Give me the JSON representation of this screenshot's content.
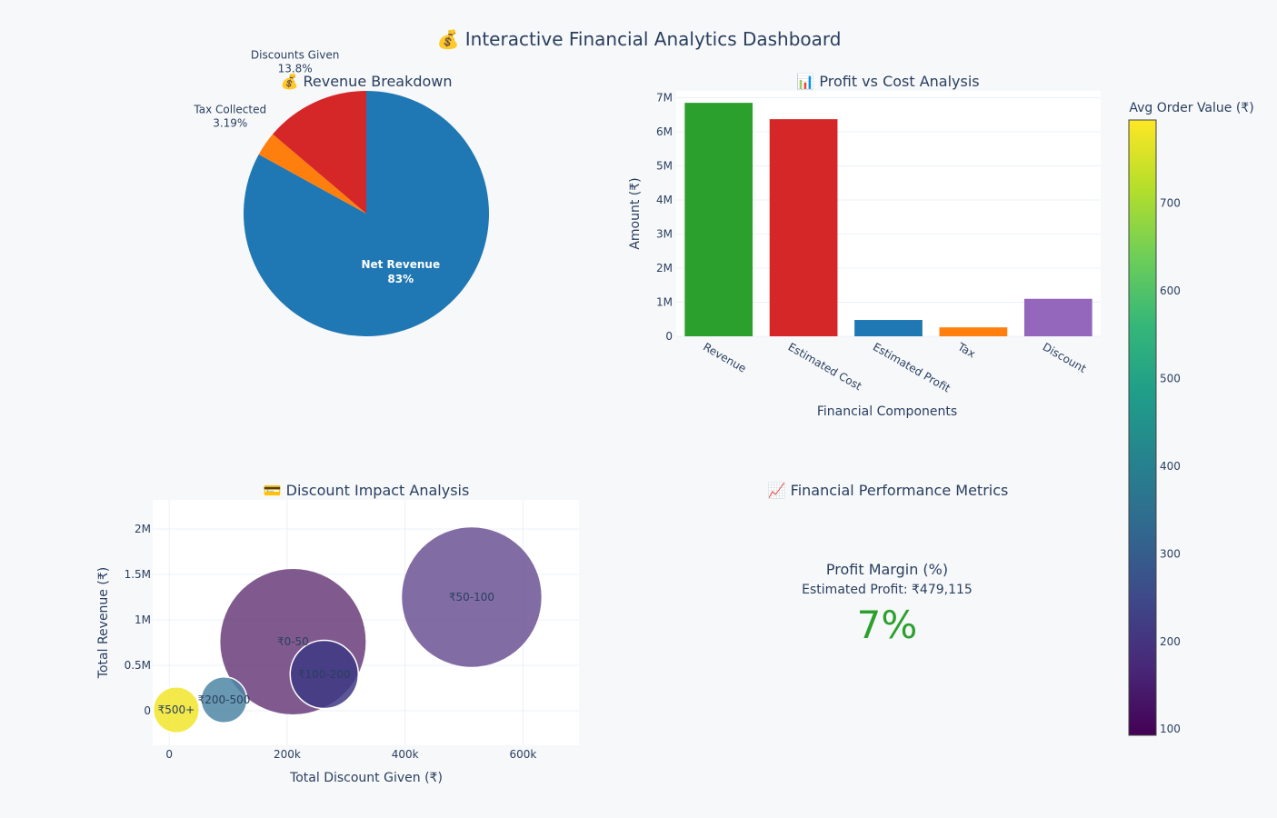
{
  "title": "💰 Interactive Financial Analytics Dashboard",
  "chart_data": [
    {
      "type": "pie",
      "title": "💰 Revenue Breakdown",
      "slices": [
        {
          "label": "Net Revenue",
          "percent": 83,
          "percent_text": "83%",
          "color": "#1f77b4"
        },
        {
          "label": "Tax Collected",
          "percent": 3.19,
          "percent_text": "3.19%",
          "color": "#ff7f0e"
        },
        {
          "label": "Discounts Given",
          "percent": 13.8,
          "percent_text": "13.8%",
          "color": "#d62728"
        }
      ]
    },
    {
      "type": "bar",
      "title": "📊 Profit vs Cost Analysis",
      "xlabel": "Financial Components",
      "ylabel": "Amount (₹)",
      "ylim": [
        0,
        7200000
      ],
      "yticks": [
        0,
        1000000,
        2000000,
        3000000,
        4000000,
        5000000,
        6000000,
        7000000
      ],
      "ytick_labels": [
        "0",
        "1M",
        "2M",
        "3M",
        "4M",
        "5M",
        "6M",
        "7M"
      ],
      "categories": [
        "Revenue",
        "Estimated Cost",
        "Estimated Profit",
        "Tax",
        "Discount"
      ],
      "values": [
        6850000,
        6370000,
        479115,
        262000,
        1100000
      ],
      "colors": [
        "#2ca02c",
        "#d62728",
        "#1f77b4",
        "#ff7f0e",
        "#9467bd"
      ]
    },
    {
      "type": "scatter",
      "title": "💳 Discount Impact Analysis",
      "xlabel": "Total Discount Given (₹)",
      "ylabel": "Total Revenue (₹)",
      "xlim": [
        -28000,
        695000
      ],
      "ylim": [
        -380000,
        2320000
      ],
      "xticks": [
        0,
        200000,
        400000,
        600000
      ],
      "xtick_labels": [
        "0",
        "200k",
        "400k",
        "600k"
      ],
      "yticks": [
        0,
        500000,
        1000000,
        1500000,
        2000000
      ],
      "ytick_labels": [
        "0",
        "0.5M",
        "1M",
        "1.5M",
        "2M"
      ],
      "points": [
        {
          "label": "₹0-50",
          "x": 210000,
          "y": 760000,
          "avg_order_value": 170,
          "color": "#6a3d7a",
          "size": 1.0
        },
        {
          "label": "₹50-100",
          "x": 513000,
          "y": 1250000,
          "avg_order_value": 140,
          "color": "#6c5294",
          "size": 0.92
        },
        {
          "label": "₹100-200",
          "x": 263000,
          "y": 400000,
          "avg_order_value": 210,
          "color": "#3e3a85",
          "size": 0.22
        },
        {
          "label": "₹200-500",
          "x": 93000,
          "y": 120000,
          "avg_order_value": 380,
          "color": "#4f86a4",
          "size": 0.1
        },
        {
          "label": "₹500+",
          "x": 12000,
          "y": 10000,
          "avg_order_value": 780,
          "color": "#f2e52a",
          "size": 0.1
        }
      ],
      "colorbar": {
        "title": "Avg Order Value (₹)",
        "range": [
          93,
          795
        ],
        "ticks": [
          100,
          200,
          300,
          400,
          500,
          600,
          700
        ],
        "tick_labels": [
          "100",
          "200",
          "300",
          "400",
          "500",
          "600",
          "700"
        ],
        "colorscale": [
          "#440154",
          "#482878",
          "#3e4989",
          "#31688e",
          "#26828e",
          "#1f9e89",
          "#35b779",
          "#6ece58",
          "#b5de2b",
          "#fde725"
        ]
      }
    },
    {
      "type": "indicator",
      "title": "📈 Financial Performance Metrics",
      "metric_title": "Profit Margin (%)",
      "metric_subtitle": "Estimated Profit: ₹479,115",
      "value": 7,
      "value_text": "7%",
      "value_color": "#2ca02c"
    }
  ]
}
